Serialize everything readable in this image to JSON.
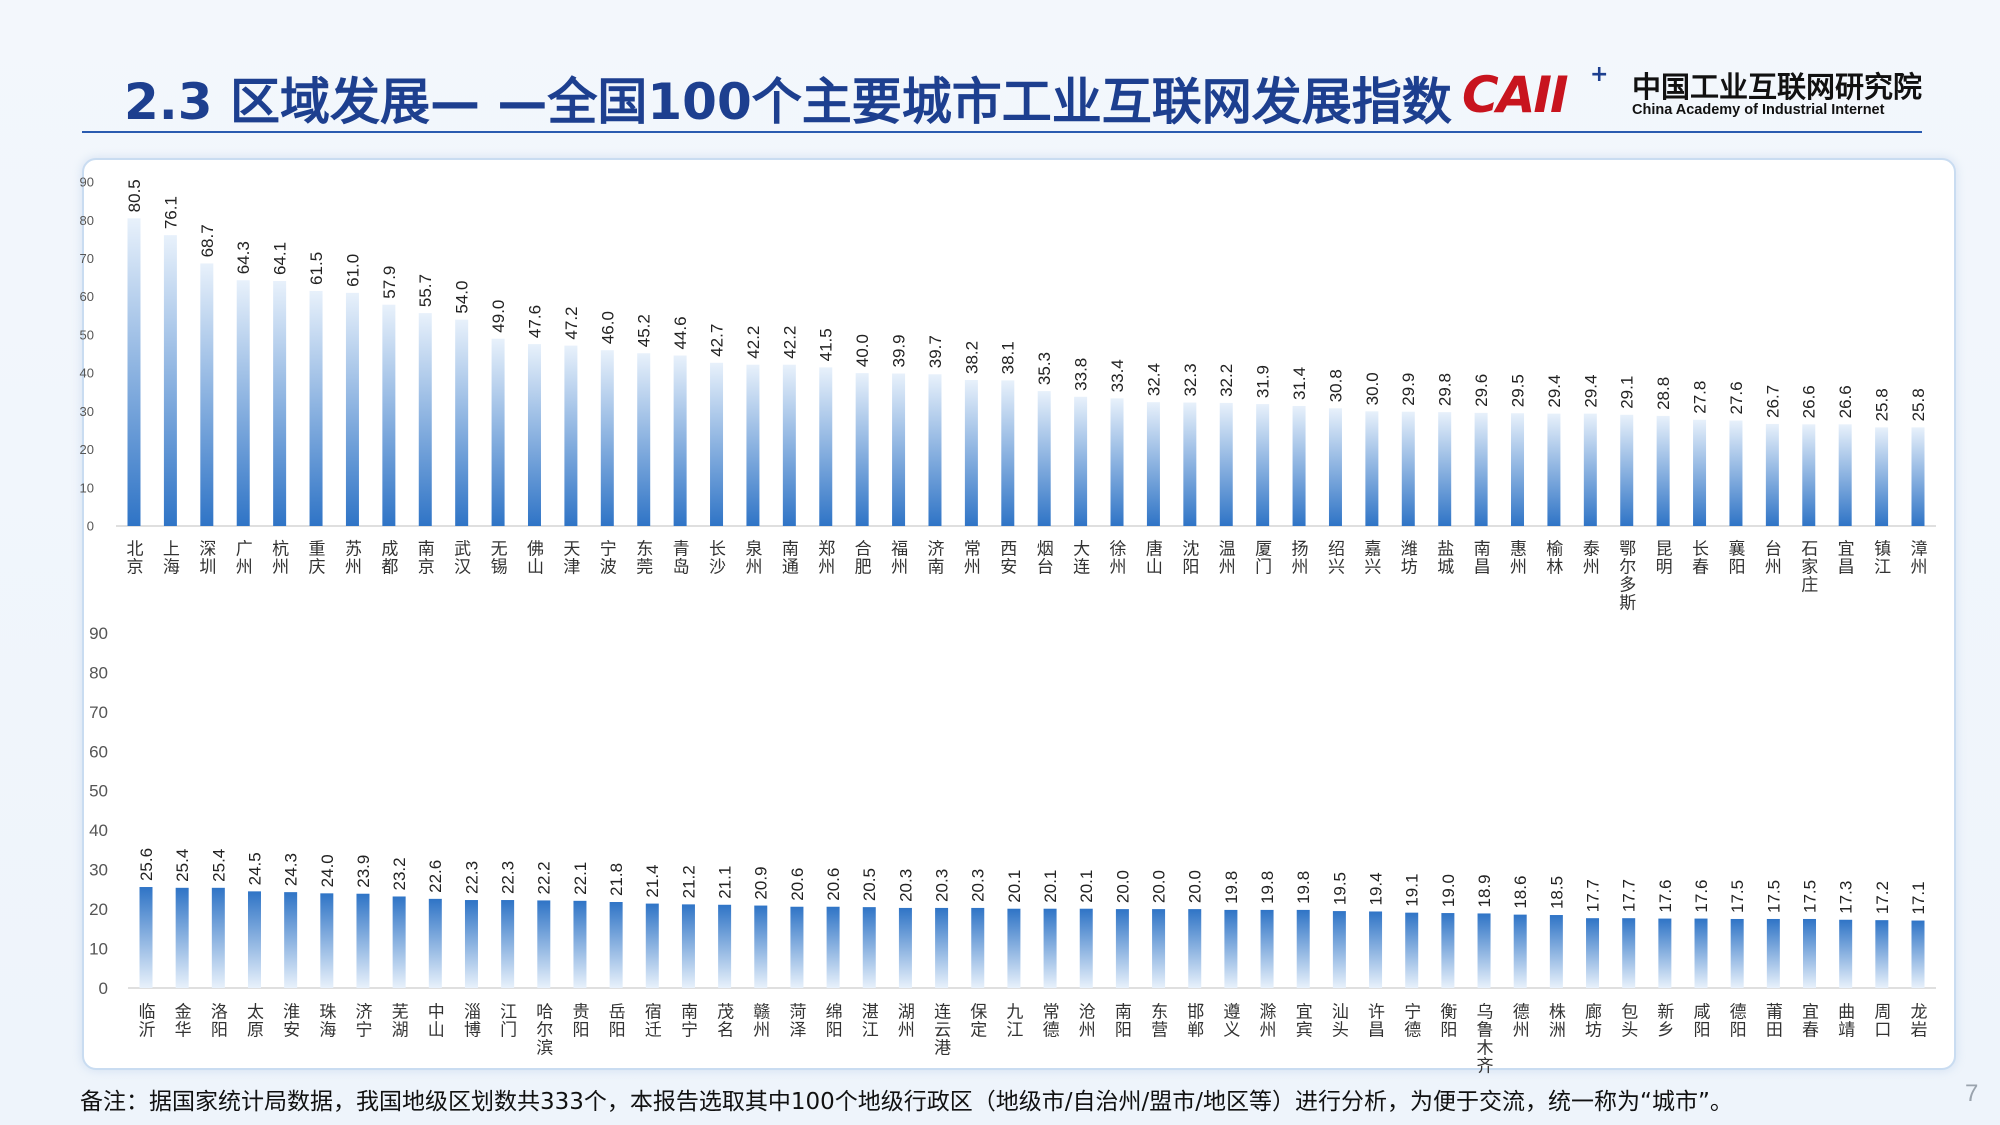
{
  "header": {
    "title": "2.3 区域发展— —全国100个主要城市工业互联网发展指数",
    "logo_mark": "CAII",
    "logo_plus": "+",
    "logo_cn": "中国工业互联网研究院",
    "logo_en": "China Academy of Industrial Internet"
  },
  "colors": {
    "title": "#1d3f8f",
    "bar_top": "#3b7fcf",
    "bar_bottom": "#ffffff",
    "logo_red": "#c8141e"
  },
  "chart_data": [
    {
      "type": "bar",
      "ylim": [
        0,
        90
      ],
      "yticks": [
        0,
        10,
        20,
        30,
        40,
        50,
        60,
        70,
        80,
        90
      ],
      "categories": [
        "北京",
        "上海",
        "深圳",
        "广州",
        "杭州",
        "重庆",
        "苏州",
        "成都",
        "南京",
        "武汉",
        "无锡",
        "佛山",
        "天津",
        "宁波",
        "东莞",
        "青岛",
        "长沙",
        "泉州",
        "南通",
        "郑州",
        "合肥",
        "福州",
        "济南",
        "常州",
        "西安",
        "烟台",
        "大连",
        "徐州",
        "唐山",
        "沈阳",
        "温州",
        "厦门",
        "扬州",
        "绍兴",
        "嘉兴",
        "潍坊",
        "盐城",
        "南昌",
        "惠州",
        "榆林",
        "泰州",
        "鄂尔多斯",
        "昆明",
        "长春",
        "襄阳",
        "台州",
        "石家庄",
        "宜昌",
        "镇江",
        "漳州"
      ],
      "values": [
        80.5,
        76.1,
        68.7,
        64.3,
        64.1,
        61.5,
        61.0,
        57.9,
        55.7,
        54.0,
        49.0,
        47.6,
        47.2,
        46.0,
        45.2,
        44.6,
        42.7,
        42.2,
        42.2,
        41.5,
        40.0,
        39.9,
        39.7,
        38.2,
        38.1,
        35.3,
        33.8,
        33.4,
        32.4,
        32.3,
        32.2,
        31.9,
        31.4,
        30.8,
        30.0,
        29.9,
        29.8,
        29.6,
        29.5,
        29.4,
        29.4,
        29.1,
        28.8,
        27.8,
        27.6,
        26.7,
        26.6,
        26.6,
        25.8,
        25.8
      ],
      "labels": [
        "80.5",
        "76.1",
        "68.7",
        "64.3",
        "64.1",
        "61.5",
        "61.0",
        "57.9",
        "55.7",
        "54.0",
        "49.0",
        "47.6",
        "47.2",
        "46.0",
        "45.2",
        "44.6",
        "42.7",
        "42.2",
        "42.2",
        "41.5",
        "40.0",
        "39.9",
        "39.7",
        "38.2",
        "38.1",
        "35.3",
        "33.8",
        "33.4",
        "32.4",
        "32.3",
        "32.2",
        "31.9",
        "31.4",
        "30.8",
        "30.0",
        "29.9",
        "29.8",
        "29.6",
        "29.5",
        "29.4",
        "29.4",
        "29.1",
        "28.8",
        "27.8",
        "27.6",
        "26.7",
        "26.6",
        "26.6",
        "25.8",
        "25.8"
      ]
    },
    {
      "type": "bar",
      "ylim": [
        0,
        90
      ],
      "yticks": [
        0,
        10,
        20,
        30,
        40,
        50,
        60,
        70,
        80,
        90
      ],
      "categories": [
        "临沂",
        "金华",
        "洛阳",
        "太原",
        "淮安",
        "珠海",
        "济宁",
        "芜湖",
        "中山",
        "淄博",
        "江门",
        "哈尔滨",
        "贵阳",
        "岳阳",
        "宿迁",
        "南宁",
        "茂名",
        "赣州",
        "菏泽",
        "绵阳",
        "湛江",
        "湖州",
        "连云港",
        "保定",
        "九江",
        "常德",
        "沧州",
        "南阳",
        "东营",
        "邯郸",
        "遵义",
        "滁州",
        "宜宾",
        "汕头",
        "许昌",
        "宁德",
        "衡阳",
        "乌鲁木齐",
        "德州",
        "株洲",
        "廊坊",
        "包头",
        "新乡",
        "咸阳",
        "德阳",
        "莆田",
        "宜春",
        "曲靖",
        "周口",
        "龙岩"
      ],
      "values": [
        25.6,
        25.4,
        25.4,
        24.5,
        24.3,
        24.0,
        23.9,
        23.2,
        22.6,
        22.3,
        22.3,
        22.2,
        22.1,
        21.8,
        21.4,
        21.2,
        21.1,
        20.9,
        20.6,
        20.6,
        20.5,
        20.3,
        20.3,
        20.3,
        20.1,
        20.1,
        20.1,
        20.0,
        20.0,
        20.0,
        19.8,
        19.8,
        19.8,
        19.5,
        19.4,
        19.1,
        19.0,
        18.9,
        18.6,
        18.5,
        17.7,
        17.7,
        17.6,
        17.6,
        17.5,
        17.5,
        17.5,
        17.3,
        17.2,
        17.1
      ],
      "labels": [
        "25.6",
        "25.4",
        "25.4",
        "24.5",
        "24.3",
        "24.0",
        "23.9",
        "23.2",
        "22.6",
        "22.3",
        "22.3",
        "22.2",
        "22.1",
        "21.8",
        "21.4",
        "21.2",
        "21.1",
        "20.9",
        "20.6",
        "20.6",
        "20.5",
        "20.3",
        "20.3",
        "20.3",
        "20.1",
        "20.1",
        "20.1",
        "20.0",
        "20.0",
        "20.0",
        "19.8",
        "19.8",
        "19.8",
        "19.5",
        "19.4",
        "19.1",
        "19.0",
        "18.9",
        "18.6",
        "18.5",
        "17.7",
        "17.7",
        "17.6",
        "17.6",
        "17.5",
        "17.5",
        "17.5",
        "17.3",
        "17.2",
        "17.1"
      ]
    }
  ],
  "footnote": "备注：据国家统计局数据，我国地级区划数共333个，本报告选取其中100个地级行政区（地级市/自治州/盟市/地区等）进行分析，为便于交流，统一称为“城市”。",
  "page_number": "7"
}
